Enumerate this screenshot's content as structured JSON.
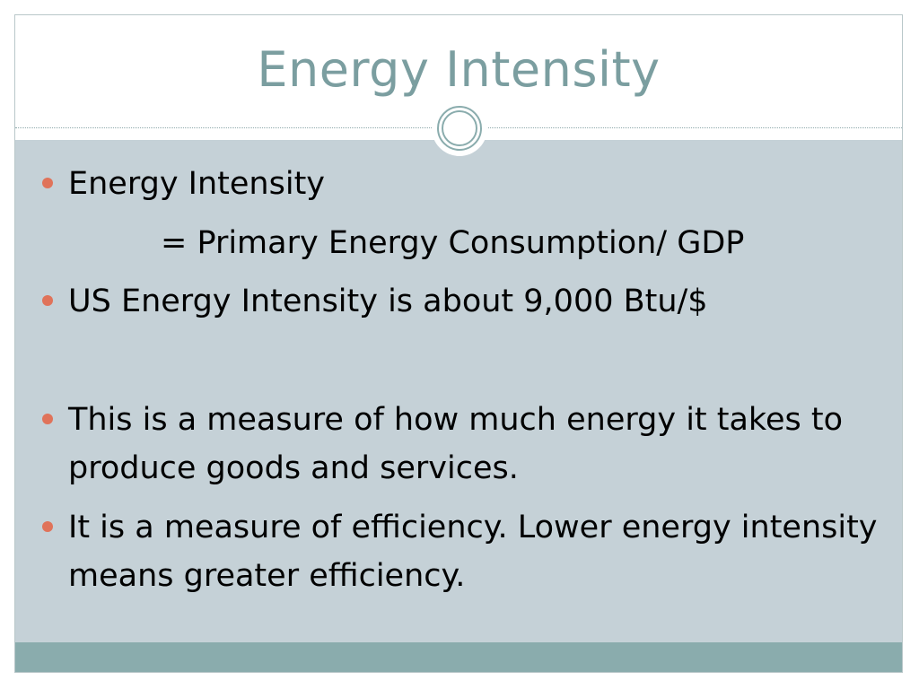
{
  "slide": {
    "title": "Energy Intensity",
    "bullets": [
      {
        "text": "Energy Intensity"
      },
      {
        "text": "US Energy Intensity is about 9,000 Btu/$"
      },
      {
        "text": "This is a measure of how much energy it takes to produce goods and services."
      },
      {
        "text": "It is a measure of efficiency. Lower energy intensity means greater efficiency."
      }
    ],
    "formula_line": "= Primary Energy Consumption/ GDP"
  },
  "colors": {
    "title": "#7b9ea0",
    "content_bg": "#c5d1d7",
    "footer_bar": "#8aacad",
    "bullet": "#e0735a"
  }
}
